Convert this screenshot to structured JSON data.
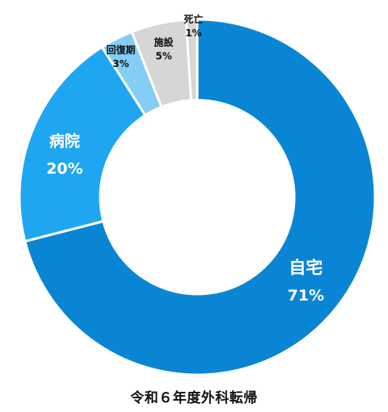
{
  "chart_data": {
    "type": "pie",
    "variant": "donut",
    "title": "令和６年度外科転帰",
    "start": "top",
    "direction": "clockwise",
    "slices": [
      {
        "label": "自宅",
        "value": 71,
        "value_text": "71%",
        "color": "#0a85d4",
        "label_color": "#ffffff"
      },
      {
        "label": "病院",
        "value": 20,
        "value_text": "20%",
        "color": "#1fa6f0",
        "label_color": "#ffffff"
      },
      {
        "label": "回復期",
        "value": 3,
        "value_text": "3%",
        "color": "#84cdf5",
        "label_color": "#111111"
      },
      {
        "label": "施設",
        "value": 5,
        "value_text": "5%",
        "color": "#d6d6d6",
        "label_color": "#111111"
      },
      {
        "label": "死亡",
        "value": 1,
        "value_text": "1%",
        "color": "#d6d6d6",
        "label_color": "#111111"
      }
    ]
  }
}
